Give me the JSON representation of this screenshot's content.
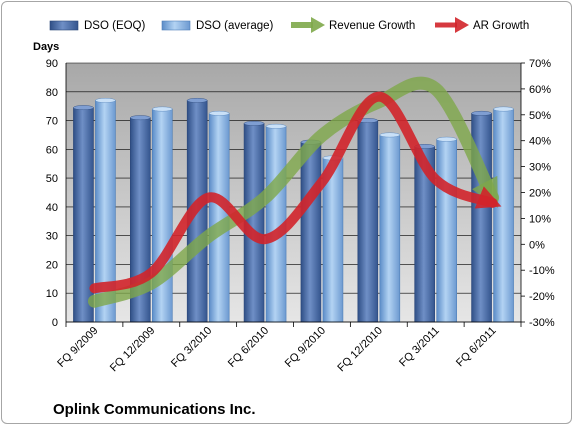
{
  "chart_data": {
    "type": "bar",
    "footer": "Oplink Communications Inc.",
    "ylabel_left": "Days",
    "categories": [
      "FQ 9/2009",
      "FQ 12/2009",
      "FQ 3/2010",
      "FQ 6/2010",
      "FQ 9/2010",
      "FQ 12/2010",
      "FQ 3/2011",
      "FQ 6/2011"
    ],
    "ylim_left": [
      0,
      90
    ],
    "yticks_left": [
      0,
      10,
      20,
      30,
      40,
      50,
      60,
      70,
      80,
      90
    ],
    "ylim_right": [
      -30,
      70
    ],
    "yticks_right": [
      "-30%",
      "-20%",
      "-10%",
      "0%",
      "10%",
      "20%",
      "30%",
      "40%",
      "50%",
      "60%",
      "70%"
    ],
    "legend_position": "top",
    "grid": true,
    "series": [
      {
        "name": "DSO (EOQ)",
        "kind": "bar",
        "axis": "left",
        "color": "#4f6fa8",
        "values": [
          74.5,
          71,
          77,
          69,
          62.5,
          70,
          61,
          72.5
        ]
      },
      {
        "name": "DSO (average)",
        "kind": "bar",
        "axis": "left",
        "color": "#8cb4e2",
        "values": [
          77,
          74,
          72.5,
          68,
          57,
          65,
          63.5,
          74
        ]
      },
      {
        "name": "Revenue Growth",
        "kind": "arrow",
        "axis": "right",
        "color": "#7ea84a",
        "values": [
          -22,
          -15,
          3,
          18,
          42,
          55,
          60,
          18
        ]
      },
      {
        "name": "AR Growth",
        "kind": "arrow",
        "axis": "right",
        "color": "#d2232a",
        "values": [
          -17,
          -11,
          18,
          2,
          24,
          57,
          25,
          16
        ]
      }
    ]
  }
}
